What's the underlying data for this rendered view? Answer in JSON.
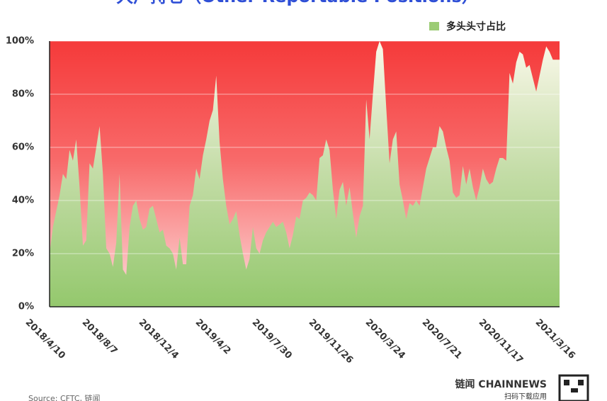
{
  "chart_data": {
    "type": "area",
    "title": "大户持仓（Other Reportable Positions）",
    "categories": [
      "2018/4/10",
      null,
      null,
      null,
      null,
      null,
      null,
      null,
      null,
      null,
      null,
      null,
      null,
      null,
      null,
      null,
      null,
      "2018/8/7",
      null,
      null,
      null,
      null,
      null,
      null,
      null,
      null,
      null,
      null,
      null,
      null,
      null,
      null,
      null,
      null,
      "2018/12/4",
      null,
      null,
      null,
      null,
      null,
      null,
      null,
      null,
      null,
      null,
      null,
      null,
      null,
      null,
      null,
      null,
      "2019/4/2",
      null,
      null,
      null,
      null,
      null,
      null,
      null,
      null,
      null,
      null,
      null,
      null,
      null,
      null,
      null,
      null,
      "2019/7/30",
      null,
      null,
      null,
      null,
      null,
      null,
      null,
      null,
      null,
      null,
      null,
      null,
      null,
      null,
      null,
      null,
      "2019/11/26",
      null,
      null,
      null,
      null,
      null,
      null,
      null,
      null,
      null,
      null,
      null,
      null,
      null,
      null,
      null,
      null,
      "2020/3/24",
      null,
      null,
      null,
      null,
      null,
      null,
      null,
      null,
      null,
      null,
      null,
      null,
      null,
      null,
      null,
      null,
      "2020/7/21",
      null,
      null,
      null,
      null,
      null,
      null,
      null,
      null,
      null,
      null,
      null,
      null,
      null,
      null,
      null,
      null,
      "2020/11/17",
      null,
      null,
      null,
      null,
      null,
      null,
      null,
      null,
      null,
      null,
      null,
      null,
      null,
      null,
      null,
      null,
      "2021/3/16"
    ],
    "series": [
      {
        "name": "多头头寸占比",
        "color": "#9ccc75",
        "values": [
          20,
          30,
          36,
          42,
          50,
          48,
          59,
          55,
          63,
          45,
          23,
          25,
          54,
          52,
          60,
          68,
          50,
          22,
          20,
          15,
          24,
          50,
          14,
          12,
          30,
          38,
          40,
          33,
          29,
          30,
          37,
          38,
          33,
          28,
          29,
          23,
          22,
          20,
          14,
          26,
          16,
          16,
          38,
          42,
          52,
          48,
          57,
          63,
          70,
          74,
          87,
          62,
          48,
          38,
          31,
          33,
          36,
          27,
          20,
          14,
          18,
          30,
          22,
          20,
          25,
          28,
          30,
          32,
          30,
          31,
          32,
          28,
          22,
          27,
          34,
          33,
          40,
          41,
          43,
          42,
          40,
          56,
          57,
          63,
          59,
          44,
          33,
          44,
          47,
          38,
          45,
          35,
          26,
          34,
          38,
          78,
          63,
          80,
          96,
          100,
          97,
          75,
          54,
          63,
          66,
          46,
          40,
          33,
          39,
          38,
          40,
          38,
          45,
          52,
          56,
          60,
          60,
          68,
          66,
          60,
          55,
          43,
          41,
          42,
          53,
          46,
          52,
          45,
          40,
          45,
          52,
          48,
          46,
          47,
          52,
          56,
          56,
          55,
          88,
          84,
          92,
          96,
          95,
          90,
          91,
          86,
          81,
          87,
          93,
          98,
          96,
          93,
          93,
          93
        ]
      }
    ],
    "ylim": [
      0,
      100
    ],
    "yticks": [
      {
        "value": 0,
        "label": "0%"
      },
      {
        "value": 20,
        "label": "20%"
      },
      {
        "value": 40,
        "label": "40%"
      },
      {
        "value": 60,
        "label": "60%"
      },
      {
        "value": 80,
        "label": "80%"
      },
      {
        "value": 100,
        "label": "100%"
      }
    ],
    "grid": true,
    "legend": "top-right",
    "source": "Source: CFTC, 链闻",
    "brand": "链闻 CHAINNEWS",
    "brand_sub": "扫码下载应用"
  }
}
